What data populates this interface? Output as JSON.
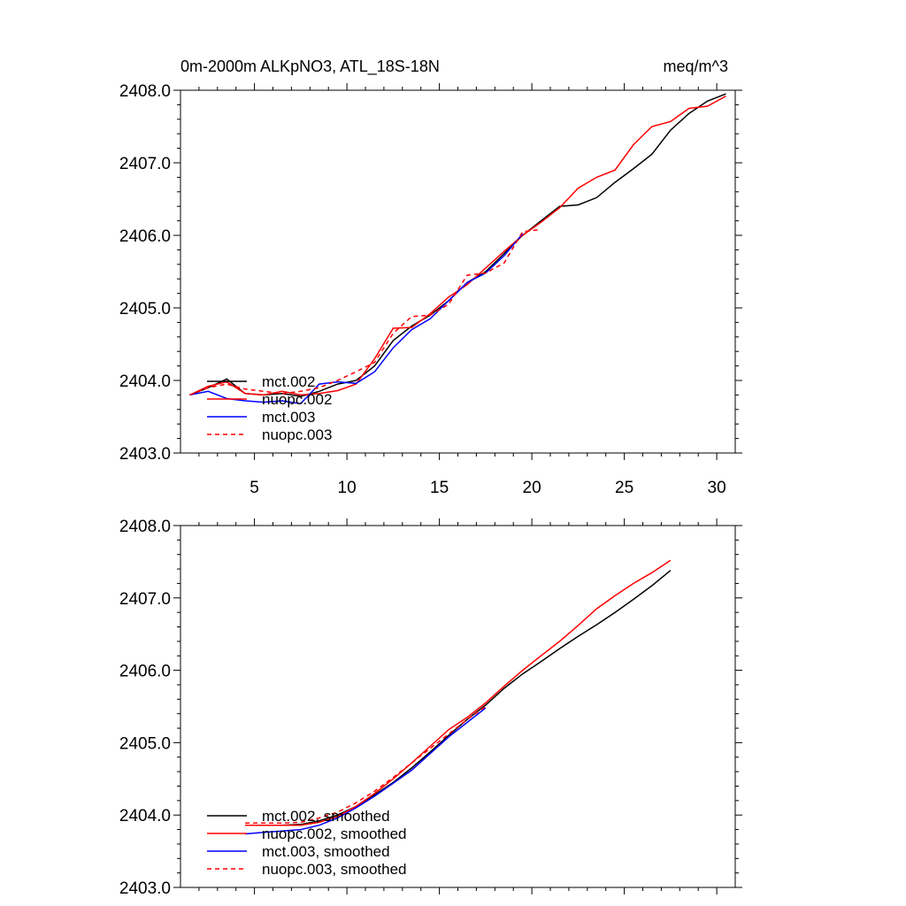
{
  "chart_data": [
    {
      "type": "line",
      "title": "0m-2000m ALKpNO3, ATL_18S-18N",
      "units": "meq/m^3",
      "ylim": [
        2403.0,
        2408.0
      ],
      "xlim": [
        1,
        31
      ],
      "yticks": [
        "2403.0",
        "2404.0",
        "2405.0",
        "2406.0",
        "2407.0",
        "2408.0"
      ],
      "xticks": [
        "5",
        "10",
        "15",
        "20",
        "25",
        "30"
      ],
      "xlabels_visible": true,
      "legend_position": "bottom-left",
      "series": [
        {
          "name": "mct.002",
          "color": "#000000",
          "dash": "solid",
          "x": [
            1.5,
            2.5,
            3.5,
            4.5,
            5.5,
            6.5,
            7.5,
            8.5,
            9.5,
            10.5,
            11.5,
            12.5,
            13.5,
            14.5,
            15.5,
            16.5,
            17.5,
            18.5,
            19.5,
            20.5,
            21.5,
            22.5,
            23.5,
            24.5,
            25.5,
            26.5,
            27.5,
            28.5,
            29.5,
            30.5
          ],
          "y": [
            2403.8,
            2403.9,
            2404.02,
            2403.82,
            2403.8,
            2403.82,
            2403.78,
            2403.85,
            2403.95,
            2404.0,
            2404.2,
            2404.55,
            2404.75,
            2404.9,
            2405.1,
            2405.35,
            2405.5,
            2405.75,
            2406.0,
            2406.2,
            2406.4,
            2406.42,
            2406.52,
            2406.73,
            2406.92,
            2407.12,
            2407.45,
            2407.68,
            2407.85,
            2407.95
          ]
        },
        {
          "name": "nuopc.002",
          "color": "#ff0000",
          "dash": "solid",
          "x": [
            1.5,
            2.5,
            3.5,
            4.5,
            5.5,
            6.5,
            7.5,
            8.5,
            9.5,
            10.5,
            11.5,
            12.5,
            13.5,
            14.5,
            15.5,
            16.5,
            17.5,
            18.5,
            19.5,
            20.5,
            21.5,
            22.5,
            23.5,
            24.5,
            25.5,
            26.5,
            27.5,
            28.5,
            29.5,
            30.5
          ],
          "y": [
            2403.8,
            2403.92,
            2403.98,
            2403.82,
            2403.8,
            2403.85,
            2403.8,
            2403.82,
            2403.86,
            2403.95,
            2404.3,
            2404.72,
            2404.73,
            2404.92,
            2405.15,
            2405.32,
            2405.55,
            2405.78,
            2406.0,
            2406.18,
            2406.38,
            2406.65,
            2406.8,
            2406.9,
            2407.25,
            2407.5,
            2407.57,
            2407.75,
            2407.78,
            2407.92
          ]
        },
        {
          "name": "mct.003",
          "color": "#0000ff",
          "dash": "solid",
          "x": [
            1.5,
            2.5,
            3.5,
            4.5,
            5.5,
            6.5,
            7.5,
            8.5,
            9.5,
            10.5,
            11.5,
            12.5,
            13.5,
            14.5,
            15.5,
            16.5,
            17.5,
            18.5,
            19.5
          ],
          "y": [
            2403.8,
            2403.85,
            2403.75,
            2403.72,
            2403.7,
            2403.72,
            2403.68,
            2403.95,
            2403.98,
            2403.96,
            2404.12,
            2404.45,
            2404.7,
            2404.85,
            2405.1,
            2405.35,
            2405.48,
            2405.72,
            2406.02
          ]
        },
        {
          "name": "nuopc.003",
          "color": "#ff0000",
          "dash": "dashed",
          "x": [
            1.5,
            2.5,
            3.5,
            4.5,
            5.5,
            6.5,
            7.5,
            8.5,
            9.5,
            10.5,
            11.5,
            12.5,
            13.5,
            14.5,
            15.5,
            16.5,
            17.5,
            18.5,
            19.5,
            20.5
          ],
          "y": [
            2403.8,
            2403.9,
            2403.95,
            2403.88,
            2403.85,
            2403.82,
            2403.85,
            2403.9,
            2404.0,
            2404.12,
            2404.25,
            2404.65,
            2404.88,
            2404.9,
            2405.05,
            2405.45,
            2405.48,
            2405.62,
            2406.05,
            2406.08
          ]
        }
      ]
    },
    {
      "type": "line",
      "ylim": [
        2403.0,
        2408.0
      ],
      "xlim": [
        1,
        31
      ],
      "yticks": [
        "2403.0",
        "2404.0",
        "2405.0",
        "2406.0",
        "2407.0",
        "2408.0"
      ],
      "xticks": [],
      "xlabels_visible": false,
      "legend_position": "bottom-left",
      "series": [
        {
          "name": "mct.002, smoothed",
          "color": "#000000",
          "dash": "solid",
          "x": [
            4.5,
            5.5,
            6.5,
            7.5,
            8.5,
            9.5,
            10.5,
            11.5,
            12.5,
            13.5,
            14.5,
            15.5,
            16.5,
            17.5,
            18.5,
            19.5,
            20.5,
            21.5,
            22.5,
            23.5,
            24.5,
            25.5,
            26.5,
            27.5
          ],
          "y": [
            2403.86,
            2403.86,
            2403.86,
            2403.87,
            2403.92,
            2404.0,
            2404.12,
            2404.28,
            2404.45,
            2404.65,
            2404.87,
            2405.1,
            2405.32,
            2405.52,
            2405.75,
            2405.95,
            2406.12,
            2406.3,
            2406.47,
            2406.63,
            2406.8,
            2406.98,
            2407.17,
            2407.38
          ]
        },
        {
          "name": "nuopc.002, smoothed",
          "color": "#ff0000",
          "dash": "solid",
          "x": [
            4.5,
            5.5,
            6.5,
            7.5,
            8.5,
            9.5,
            10.5,
            11.5,
            12.5,
            13.5,
            14.5,
            15.5,
            16.5,
            17.5,
            18.5,
            19.5,
            20.5,
            21.5,
            22.5,
            23.5,
            24.5,
            25.5,
            26.5,
            27.5
          ],
          "y": [
            2403.86,
            2403.86,
            2403.86,
            2403.86,
            2403.9,
            2403.98,
            2404.12,
            2404.3,
            2404.5,
            2404.72,
            2404.95,
            2405.18,
            2405.35,
            2405.55,
            2405.78,
            2406.0,
            2406.2,
            2406.4,
            2406.62,
            2406.85,
            2407.03,
            2407.2,
            2407.35,
            2407.52
          ]
        },
        {
          "name": "mct.003, smoothed",
          "color": "#0000ff",
          "dash": "solid",
          "x": [
            4.5,
            5.5,
            6.5,
            7.5,
            8.5,
            9.5,
            10.5,
            11.5,
            12.5,
            13.5,
            14.5,
            15.5,
            16.5,
            17.5
          ],
          "y": [
            2403.74,
            2403.76,
            2403.78,
            2403.8,
            2403.86,
            2403.96,
            2404.1,
            2404.26,
            2404.44,
            2404.62,
            2404.85,
            2405.08,
            2405.28,
            2405.48
          ]
        },
        {
          "name": "nuopc.003, smoothed",
          "color": "#ff0000",
          "dash": "dashed",
          "x": [
            4.5,
            5.5,
            6.5,
            7.5,
            8.5,
            9.5,
            10.5,
            11.5,
            12.5,
            13.5,
            14.5,
            15.5,
            16.5,
            17.5
          ],
          "y": [
            2403.89,
            2403.89,
            2403.89,
            2403.9,
            2403.96,
            2404.04,
            2404.17,
            2404.33,
            2404.52,
            2404.72,
            2404.92,
            2405.12,
            2405.32,
            2405.5
          ]
        }
      ]
    }
  ]
}
